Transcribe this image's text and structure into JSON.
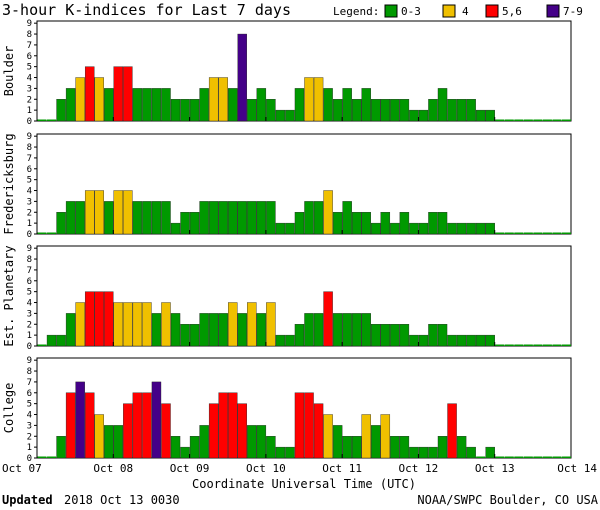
{
  "chart_data": {
    "type": "bar",
    "title": "3-hour K-indices for Last 7 days",
    "legend": {
      "label": "Legend:",
      "items": [
        {
          "label": "0-3",
          "color": "#009900"
        },
        {
          "label": "4",
          "color": "#f0c000"
        },
        {
          "label": "5,6",
          "color": "#ff0000"
        },
        {
          "label": "7-9",
          "color": "#440088"
        }
      ]
    },
    "xlabel": "Coordinate Universal Time (UTC)",
    "xticks": [
      "Oct 07",
      "Oct 08",
      "Oct 09",
      "Oct 10",
      "Oct 11",
      "Oct 12",
      "Oct 13",
      "Oct 14"
    ],
    "ylim": [
      0,
      9
    ],
    "yticks": [
      "0",
      "1",
      "2",
      "3",
      "4",
      "5",
      "6",
      "7",
      "8",
      "9"
    ],
    "interval_hours": 3,
    "series": [
      {
        "name": "Boulder",
        "values": [
          0,
          0,
          2,
          3,
          4,
          5,
          4,
          3,
          5,
          5,
          3,
          3,
          3,
          3,
          2,
          2,
          2,
          3,
          4,
          4,
          3,
          8,
          2,
          3,
          2,
          1,
          1,
          3,
          4,
          4,
          3,
          2,
          3,
          2,
          3,
          2,
          2,
          2,
          2,
          1,
          1,
          2,
          3,
          2,
          2,
          2,
          1,
          1,
          0,
          0,
          0,
          0,
          0,
          0,
          0,
          0
        ]
      },
      {
        "name": "Fredericksburg",
        "values": [
          0,
          0,
          2,
          3,
          3,
          4,
          4,
          3,
          4,
          4,
          3,
          3,
          3,
          3,
          1,
          2,
          2,
          3,
          3,
          3,
          3,
          3,
          3,
          3,
          3,
          1,
          1,
          2,
          3,
          3,
          4,
          2,
          3,
          2,
          2,
          1,
          2,
          1,
          2,
          1,
          1,
          2,
          2,
          1,
          1,
          1,
          1,
          1,
          0,
          0,
          0,
          0,
          0,
          0,
          0,
          0
        ]
      },
      {
        "name": "Est. Planetary",
        "values": [
          0,
          1,
          1,
          3,
          4,
          5,
          5,
          5,
          4,
          4,
          4,
          4,
          3,
          4,
          3,
          2,
          2,
          3,
          3,
          3,
          4,
          3,
          4,
          3,
          4,
          1,
          1,
          2,
          3,
          3,
          5,
          3,
          3,
          3,
          3,
          2,
          2,
          2,
          2,
          1,
          1,
          2,
          2,
          1,
          1,
          1,
          1,
          1,
          0,
          0,
          0,
          0,
          0,
          0,
          0,
          0
        ]
      },
      {
        "name": "College",
        "values": [
          0,
          0,
          2,
          6,
          7,
          6,
          4,
          3,
          3,
          5,
          6,
          6,
          7,
          5,
          2,
          1,
          2,
          3,
          5,
          6,
          6,
          5,
          3,
          3,
          2,
          1,
          1,
          6,
          6,
          5,
          4,
          3,
          2,
          2,
          4,
          3,
          4,
          2,
          2,
          1,
          1,
          1,
          2,
          5,
          2,
          1,
          0,
          1,
          0,
          0,
          0,
          0,
          0,
          0,
          0,
          0
        ]
      }
    ]
  },
  "footer": {
    "updated_label": "Updated",
    "updated_value": "2018 Oct 13 0030",
    "source": "NOAA/SWPC Boulder, CO USA"
  }
}
